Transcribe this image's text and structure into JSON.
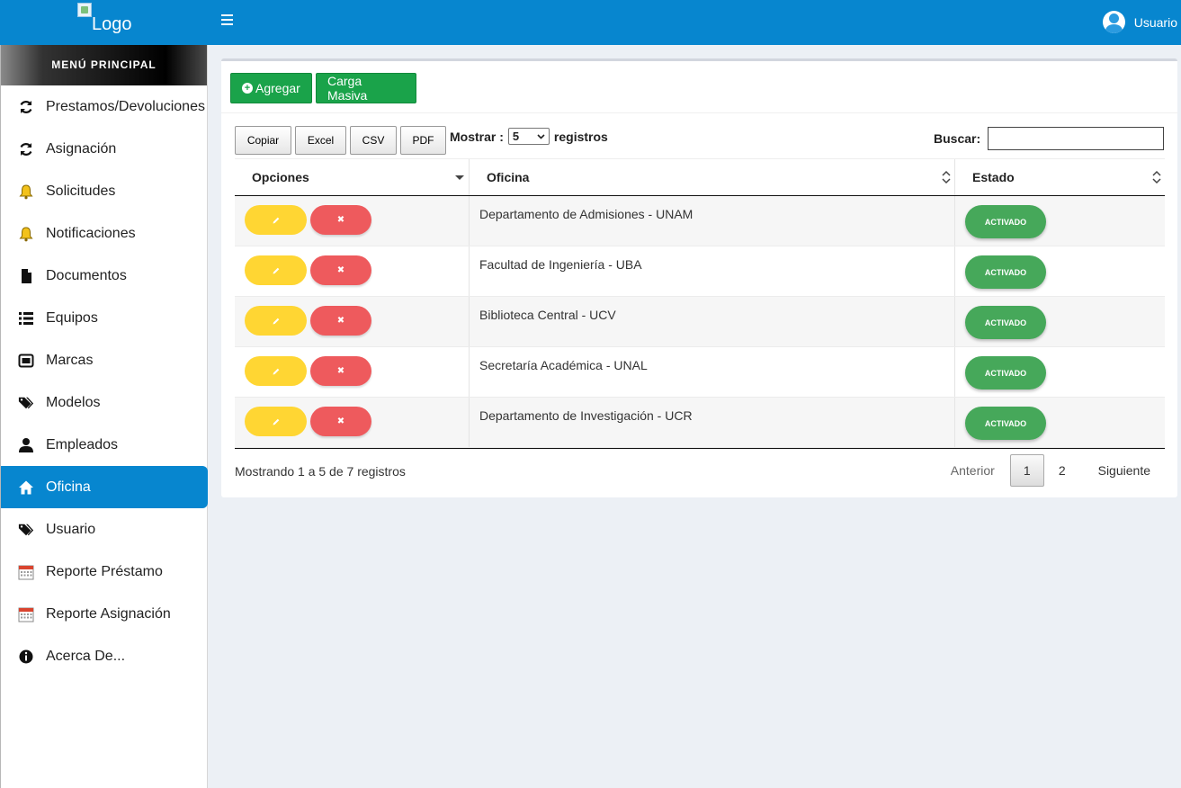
{
  "header": {
    "logo_text": "Logo",
    "user_label": "Usuario"
  },
  "sidebar": {
    "title": "MENÚ PRINCIPAL",
    "items": [
      {
        "label": "Prestamos/Devoluciones",
        "icon": "refresh-icon"
      },
      {
        "label": "Asignación",
        "icon": "refresh-icon"
      },
      {
        "label": "Solicitudes",
        "icon": "bell-icon"
      },
      {
        "label": "Notificaciones",
        "icon": "bell-icon"
      },
      {
        "label": "Documentos",
        "icon": "file-icon"
      },
      {
        "label": "Equipos",
        "icon": "list-icon"
      },
      {
        "label": "Marcas",
        "icon": "rectangle-icon"
      },
      {
        "label": "Modelos",
        "icon": "tags-icon"
      },
      {
        "label": "Empleados",
        "icon": "user-icon"
      },
      {
        "label": "Oficina",
        "icon": "home-icon",
        "active": true
      },
      {
        "label": "Usuario",
        "icon": "tags-icon"
      },
      {
        "label": "Reporte Préstamo",
        "icon": "calendar-icon"
      },
      {
        "label": "Reporte Asignación",
        "icon": "calendar-icon"
      },
      {
        "label": "Acerca De...",
        "icon": "info-icon"
      }
    ]
  },
  "toolbar": {
    "add_label": "Agregar",
    "bulk_label": "Carga Masiva"
  },
  "export": {
    "copy": "Copiar",
    "excel": "Excel",
    "csv": "CSV",
    "pdf": "PDF"
  },
  "length": {
    "prefix": "Mostrar :",
    "value": "5",
    "suffix": "registros"
  },
  "search": {
    "label": "Buscar:",
    "value": ""
  },
  "table": {
    "columns": [
      "Opciones",
      "Oficina",
      "Estado"
    ],
    "rows": [
      {
        "oficina": "Departamento de Admisiones - UNAM",
        "estado": "ACTIVADO"
      },
      {
        "oficina": "Facultad de Ingeniería - UBA",
        "estado": "ACTIVADO"
      },
      {
        "oficina": "Biblioteca Central - UCV",
        "estado": "ACTIVADO"
      },
      {
        "oficina": "Secretaría Académica - UNAL",
        "estado": "ACTIVADO"
      },
      {
        "oficina": "Departamento de Investigación - UCR",
        "estado": "ACTIVADO"
      }
    ]
  },
  "footer": {
    "info": "Mostrando 1 a 5 de 7 registros",
    "prev": "Anterior",
    "pages": [
      "1",
      "2"
    ],
    "current_page": "1",
    "next": "Siguiente"
  },
  "colors": {
    "primary": "#0786cf",
    "green": "#1aa34a",
    "edit": "#ffd633",
    "delete": "#ee5a5d",
    "status": "#46a85a"
  }
}
